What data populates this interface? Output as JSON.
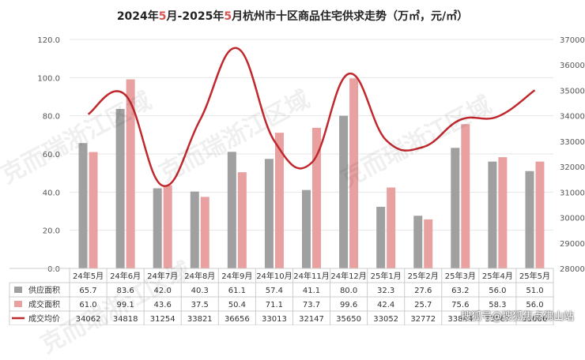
{
  "title": {
    "parts": [
      "2024年",
      "5",
      "月-2025年",
      "5",
      "月杭州市十区商品住宅供求走势（万㎡，元/㎡）"
    ]
  },
  "chart_data": {
    "type": "bar",
    "categories": [
      "24年5月",
      "24年6月",
      "24年7月",
      "24年8月",
      "24年9月",
      "24年10月",
      "24年11月",
      "24年12月",
      "25年1月",
      "25年2月",
      "25年3月",
      "25年4月",
      "25年5月"
    ],
    "series": [
      {
        "name": "供应面积",
        "kind": "bar",
        "axis": "left",
        "color": "#a0a0a0",
        "values": [
          65.7,
          83.6,
          42.0,
          40.3,
          61.1,
          57.4,
          41.1,
          80.0,
          32.3,
          27.6,
          63.2,
          56.0,
          51.0
        ],
        "labels": [
          "65.7",
          "83.6",
          "42.0",
          "40.3",
          "61.1",
          "57.4",
          "41.1",
          "80.0",
          "32.3",
          "27.6",
          "63.2",
          "56.0",
          "51.0"
        ]
      },
      {
        "name": "成交面积",
        "kind": "bar",
        "axis": "left",
        "color": "#e8a0a0",
        "values": [
          61.0,
          99.1,
          43.6,
          37.5,
          50.4,
          71.1,
          73.7,
          99.6,
          42.4,
          25.7,
          75.6,
          58.3,
          56.0
        ],
        "labels": [
          "61.0",
          "99.1",
          "43.6",
          "37.5",
          "50.4",
          "71.1",
          "73.7",
          "99.6",
          "42.4",
          "25.7",
          "75.6",
          "58.3",
          "56.0"
        ]
      },
      {
        "name": "成交均价",
        "kind": "line",
        "axis": "right",
        "color": "#c0282d",
        "values": [
          34062,
          34818,
          31254,
          33821,
          36656,
          33013,
          32147,
          35650,
          33052,
          32772,
          33844,
          33967,
          35006
        ],
        "labels": [
          "34062",
          "34818",
          "31254",
          "33821",
          "36656",
          "33013",
          "32147",
          "35650",
          "33052",
          "32772",
          "33844",
          "33967",
          "35006"
        ]
      }
    ],
    "yleft": {
      "ticks": [
        "120.0",
        "100.0",
        "80.0",
        "60.0",
        "40.0",
        "20.0",
        "0.0"
      ],
      "ylim": [
        0,
        120
      ]
    },
    "yright": {
      "ticks": [
        "37000",
        "36000",
        "35000",
        "34000",
        "33000",
        "32000",
        "31000",
        "30000",
        "29000",
        "28000"
      ],
      "ylim": [
        28000,
        37000
      ]
    },
    "grid": true,
    "legend": "table-bottom"
  },
  "watermarks": [
    "克而瑞浙江区域",
    "克而瑞浙江区域",
    "克而瑞浙江区域",
    "克而瑞浙江区域"
  ],
  "footer_watermark": "搜狐号@搜狐焦点佛山站"
}
